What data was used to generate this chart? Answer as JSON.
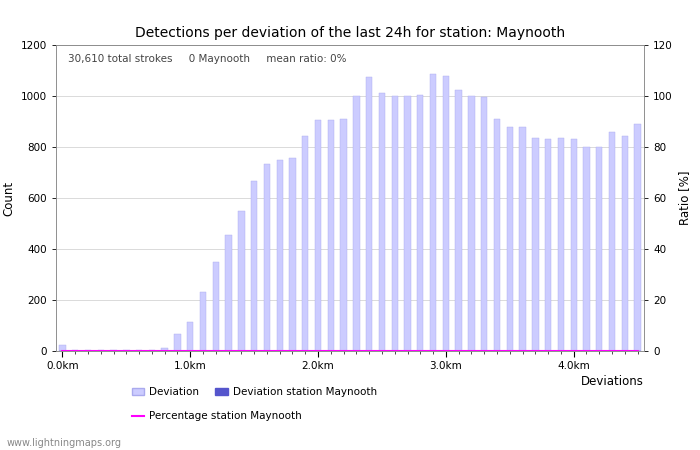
{
  "title": "Detections per deviation of the last 24h for station: Maynooth",
  "xlabel": "Deviations",
  "ylabel_left": "Count",
  "ylabel_right": "Ratio [%]",
  "annotation": "30,610 total strokes     0 Maynooth     mean ratio: 0%",
  "watermark": "www.lightningmaps.org",
  "ylim_left": [
    0,
    1200
  ],
  "ylim_right": [
    0,
    120
  ],
  "xtick_positions": [
    0,
    10,
    20,
    30,
    40
  ],
  "xtick_labels": [
    "0.0km",
    "1.0km",
    "2.0km",
    "3.0km",
    "4.0km"
  ],
  "ytick_left": [
    0,
    200,
    400,
    600,
    800,
    1000,
    1200
  ],
  "ytick_right": [
    0,
    20,
    40,
    60,
    80,
    100,
    120
  ],
  "bar_color_light": "#ccccff",
  "bar_color_dark": "#5555cc",
  "bar_edge_color": "#aaaaee",
  "line_color": "#ff00ff",
  "grid_color": "#cccccc",
  "bg_color": "#ffffff",
  "deviation_counts": [
    25,
    5,
    5,
    5,
    5,
    5,
    5,
    5,
    10,
    65,
    115,
    230,
    350,
    455,
    550,
    665,
    735,
    750,
    755,
    845,
    905,
    905,
    910,
    1000,
    1075,
    1010,
    1000,
    1000,
    1005,
    1085,
    1080,
    1025,
    1000,
    995,
    910,
    880,
    880,
    835,
    830,
    835,
    830,
    800,
    800,
    860,
    845,
    890
  ],
  "station_counts": [
    0,
    0,
    0,
    0,
    0,
    0,
    0,
    0,
    0,
    0,
    0,
    0,
    0,
    0,
    0,
    0,
    0,
    0,
    0,
    0,
    0,
    0,
    0,
    0,
    0,
    0,
    0,
    0,
    0,
    0,
    0,
    0,
    0,
    0,
    0,
    0,
    0,
    0,
    0,
    0,
    0,
    0,
    0,
    0,
    0,
    0
  ],
  "station_ratio": [
    0,
    0,
    0,
    0,
    0,
    0,
    0,
    0,
    0,
    0,
    0,
    0,
    0,
    0,
    0,
    0,
    0,
    0,
    0,
    0,
    0,
    0,
    0,
    0,
    0,
    0,
    0,
    0,
    0,
    0,
    0,
    0,
    0,
    0,
    0,
    0,
    0,
    0,
    0,
    0,
    0,
    0,
    0,
    0,
    0,
    0
  ],
  "legend_deviation_label": "Deviation",
  "legend_station_label": "Deviation station Maynooth",
  "legend_ratio_label": "Percentage station Maynooth",
  "title_fontsize": 10,
  "annotation_fontsize": 7.5,
  "tick_fontsize": 7.5,
  "label_fontsize": 8.5,
  "legend_fontsize": 7.5,
  "watermark_fontsize": 7
}
